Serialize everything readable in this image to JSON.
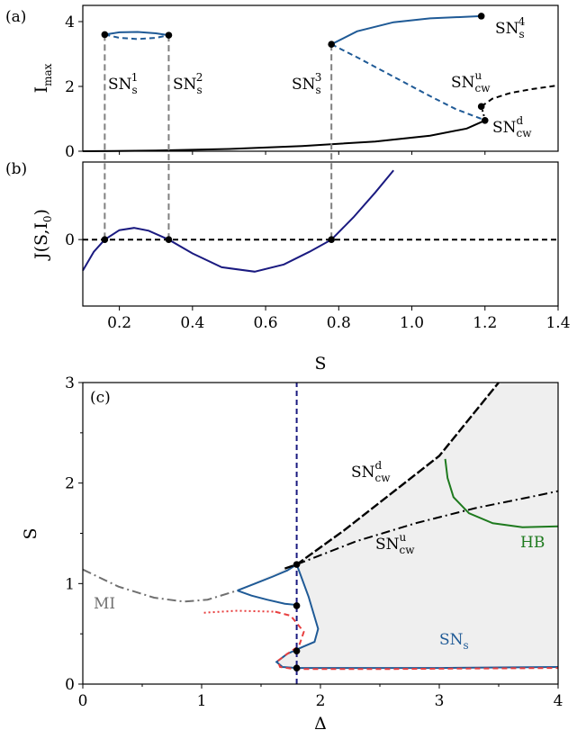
{
  "chart_data": [
    {
      "panel": "(a)",
      "type": "line",
      "ylabel": "I",
      "ylabel_sub": "max",
      "xlim": [
        0.1,
        1.4
      ],
      "ylim": [
        0,
        4.5
      ],
      "yticks": [
        "0",
        "2",
        "4"
      ],
      "colors": {
        "stable_branch": "#1f5a96",
        "homogeneous": "#000000",
        "connector": "#808080"
      },
      "annotations": [
        {
          "base": "SN",
          "sub": "s",
          "sup": "1"
        },
        {
          "base": "SN",
          "sub": "s",
          "sup": "2"
        },
        {
          "base": "SN",
          "sub": "s",
          "sup": "3"
        },
        {
          "base": "SN",
          "sub": "s",
          "sup": "4"
        },
        {
          "base": "SN",
          "sub": "cw",
          "sup": "u"
        },
        {
          "base": "SN",
          "sub": "cw",
          "sup": "d"
        }
      ],
      "series": [
        {
          "style": "solid",
          "color": "#1f5a96",
          "x": [
            0.16,
            0.2,
            0.25,
            0.3,
            0.335
          ],
          "y": [
            3.6,
            3.67,
            3.68,
            3.64,
            3.58
          ]
        },
        {
          "style": "dashed",
          "color": "#1f5a96",
          "x": [
            0.16,
            0.2,
            0.25,
            0.3,
            0.335
          ],
          "y": [
            3.6,
            3.5,
            3.46,
            3.5,
            3.58
          ]
        },
        {
          "style": "solid",
          "color": "#1f5a96",
          "x": [
            0.78,
            0.85,
            0.95,
            1.05,
            1.15,
            1.19
          ],
          "y": [
            3.3,
            3.7,
            3.98,
            4.1,
            4.15,
            4.17
          ]
        },
        {
          "style": "dashed",
          "color": "#1f5a96",
          "x": [
            0.78,
            0.85,
            0.95,
            1.05,
            1.12,
            1.19
          ],
          "y": [
            3.3,
            2.9,
            2.3,
            1.7,
            1.3,
            1.0
          ]
        },
        {
          "style": "solid",
          "color": "#000000",
          "x": [
            0.1,
            0.3,
            0.5,
            0.7,
            0.9,
            1.05,
            1.15,
            1.2
          ],
          "y": [
            0.0,
            0.02,
            0.07,
            0.16,
            0.3,
            0.48,
            0.7,
            0.95
          ]
        },
        {
          "style": "dotted",
          "color": "#000000",
          "x": [
            1.2,
            1.196,
            1.19
          ],
          "y": [
            0.95,
            1.15,
            1.38
          ]
        },
        {
          "style": "dashed",
          "color": "#000000",
          "x": [
            1.19,
            1.22,
            1.27,
            1.33,
            1.4
          ],
          "y": [
            1.38,
            1.62,
            1.8,
            1.92,
            2.03
          ]
        }
      ],
      "points": [
        {
          "x": 0.16,
          "y": 3.6
        },
        {
          "x": 0.335,
          "y": 3.58
        },
        {
          "x": 0.78,
          "y": 3.3
        },
        {
          "x": 1.19,
          "y": 4.17
        },
        {
          "x": 1.19,
          "y": 1.38
        },
        {
          "x": 1.2,
          "y": 0.95
        }
      ]
    },
    {
      "panel": "(b)",
      "type": "line",
      "xlabel": "S",
      "ylabel": "J(S,I",
      "ylabel_sub": "0",
      "ylabel_end": ")",
      "xlim": [
        0.1,
        1.4
      ],
      "ylim": [
        -1.2,
        1.4
      ],
      "xticks": [
        "0.2",
        "0.4",
        "0.6",
        "0.8",
        "1.0",
        "1.2",
        "1.4"
      ],
      "yticks": [
        "0"
      ],
      "colors": {
        "curve": "#1a1a80"
      },
      "series": [
        {
          "style": "solid",
          "color": "#1a1a80",
          "x": [
            0.1,
            0.13,
            0.16,
            0.2,
            0.24,
            0.28,
            0.335,
            0.4,
            0.48,
            0.57,
            0.65,
            0.72,
            0.78,
            0.84,
            0.9,
            0.95
          ],
          "y": [
            -0.56,
            -0.22,
            0.0,
            0.17,
            0.21,
            0.16,
            0.0,
            -0.25,
            -0.5,
            -0.58,
            -0.45,
            -0.22,
            0.0,
            0.4,
            0.85,
            1.25
          ]
        },
        {
          "style": "dashed",
          "color": "#000000",
          "x": [
            0.1,
            1.4
          ],
          "y": [
            0,
            0
          ]
        }
      ],
      "points": [
        {
          "x": 0.16,
          "y": 0
        },
        {
          "x": 0.335,
          "y": 0
        },
        {
          "x": 0.78,
          "y": 0
        }
      ]
    },
    {
      "panel": "(c)",
      "type": "line",
      "xlabel": "Δ",
      "ylabel": "S",
      "xlim": [
        0,
        4
      ],
      "ylim": [
        0,
        3
      ],
      "xticks": [
        "0",
        "1",
        "2",
        "3",
        "4"
      ],
      "yticks": [
        "0",
        "1",
        "2",
        "3"
      ],
      "colors": {
        "SN_s": "#1f5a96",
        "SN_cw": "#000000",
        "HB": "#1e7a1e",
        "MI": "#707070",
        "red": "#e84040",
        "vline": "#1a1a80",
        "shade": "#efefef"
      },
      "labels": [
        {
          "text": "MI",
          "color": "#707070"
        },
        {
          "text": "HB",
          "color": "#1e7a1e"
        },
        {
          "base": "SN",
          "sub": "s",
          "color": "#1f5a96"
        },
        {
          "base": "SN",
          "sub": "cw",
          "sup": "d",
          "color": "#000000"
        },
        {
          "base": "SN",
          "sub": "cw",
          "sup": "u",
          "color": "#000000"
        }
      ],
      "series": [
        {
          "name_ref": "MI",
          "style": "dashdot",
          "color": "#707070",
          "x": [
            0,
            0.3,
            0.6,
            0.85,
            1.05,
            1.3
          ],
          "y": [
            1.14,
            0.97,
            0.86,
            0.82,
            0.84,
            0.93
          ]
        },
        {
          "name_ref": "SN_s",
          "style": "solid",
          "color": "#1f5a96",
          "x": [
            1.3,
            1.45,
            1.6,
            1.72,
            1.8,
            1.9,
            1.98,
            1.95,
            1.85,
            1.72,
            1.63,
            1.68,
            1.8,
            2.2,
            3.0,
            4.0
          ],
          "y": [
            0.93,
            1.0,
            1.07,
            1.13,
            1.19,
            0.87,
            0.55,
            0.42,
            0.37,
            0.3,
            0.22,
            0.17,
            0.16,
            0.16,
            0.16,
            0.17
          ]
        },
        {
          "name_ref": "SN_s_upper",
          "style": "solid",
          "color": "#1f5a96",
          "x": [
            1.3,
            1.42,
            1.55,
            1.7,
            1.78,
            1.8
          ],
          "y": [
            0.93,
            0.88,
            0.84,
            0.8,
            0.79,
            0.78
          ]
        },
        {
          "name_ref": "red",
          "style": "dashed",
          "color": "#e84040",
          "x": [
            1.62,
            1.75,
            1.86,
            1.82,
            1.72,
            1.64,
            1.66,
            1.78,
            2.5,
            4.0
          ],
          "y": [
            0.72,
            0.68,
            0.52,
            0.38,
            0.3,
            0.23,
            0.17,
            0.15,
            0.15,
            0.16
          ]
        },
        {
          "name_ref": "red_dotted",
          "style": "dotted",
          "color": "#e84040",
          "x": [
            1.02,
            1.3,
            1.62
          ],
          "y": [
            0.71,
            0.73,
            0.72
          ]
        },
        {
          "name_ref": "SN_cw_d",
          "style": "dashed-bold",
          "color": "#000000",
          "x": [
            1.7,
            1.8,
            2.2,
            2.6,
            3.0,
            3.5
          ],
          "y": [
            1.15,
            1.19,
            1.53,
            1.9,
            2.27,
            3.0
          ]
        },
        {
          "name_ref": "SN_cw_u",
          "style": "dashdot",
          "color": "#000000",
          "x": [
            1.8,
            2.3,
            2.8,
            3.3,
            3.8,
            4.0
          ],
          "y": [
            1.19,
            1.42,
            1.6,
            1.75,
            1.87,
            1.92
          ]
        },
        {
          "name_ref": "HB",
          "style": "solid",
          "color": "#1e7a1e",
          "x": [
            3.05,
            3.07,
            3.12,
            3.25,
            3.45,
            3.7,
            4.0
          ],
          "y": [
            2.24,
            2.05,
            1.86,
            1.7,
            1.6,
            1.56,
            1.57
          ]
        },
        {
          "name_ref": "vline",
          "style": "dashed",
          "color": "#1a1a80",
          "x": [
            1.8,
            1.8
          ],
          "y": [
            0,
            3
          ]
        }
      ],
      "points": [
        {
          "x": 1.8,
          "y": 1.19
        },
        {
          "x": 1.8,
          "y": 0.78
        },
        {
          "x": 1.8,
          "y": 0.33
        },
        {
          "x": 1.8,
          "y": 0.16
        }
      ]
    }
  ]
}
